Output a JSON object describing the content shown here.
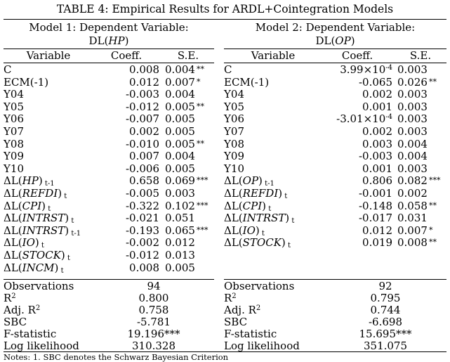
{
  "title": "TABLE 4: Empirical Results for ARDL+Cointegration Models",
  "model1": {
    "header_line1": "Model 1: Dependent Variable:",
    "header_line2_prefix": "DL(",
    "header_line2_var": "HP",
    "header_line2_suffix": ")",
    "col_variable": "Variable",
    "col_coeff": "Coeff.",
    "col_se": "S.E.",
    "rows": [
      {
        "pre": "C",
        "var": "",
        "post": "",
        "sub": "",
        "coeff": "0.008",
        "se": "0.004",
        "stars": "**"
      },
      {
        "pre": "ECM(-1)",
        "var": "",
        "post": "",
        "sub": "",
        "coeff": "0.012",
        "se": "0.007",
        "stars": "*"
      },
      {
        "pre": "Y04",
        "var": "",
        "post": "",
        "sub": "",
        "coeff": "-0.003",
        "se": "0.004",
        "stars": ""
      },
      {
        "pre": "Y05",
        "var": "",
        "post": "",
        "sub": "",
        "coeff": "-0.012",
        "se": "0.005",
        "stars": "**"
      },
      {
        "pre": "Y06",
        "var": "",
        "post": "",
        "sub": "",
        "coeff": "-0.007",
        "se": "0.005",
        "stars": ""
      },
      {
        "pre": "Y07",
        "var": "",
        "post": "",
        "sub": "",
        "coeff": "0.002",
        "se": "0.005",
        "stars": ""
      },
      {
        "pre": "Y08",
        "var": "",
        "post": "",
        "sub": "",
        "coeff": "-0.010",
        "se": "0.005",
        "stars": "**"
      },
      {
        "pre": "Y09",
        "var": "",
        "post": "",
        "sub": "",
        "coeff": "0.007",
        "se": "0.004",
        "stars": ""
      },
      {
        "pre": "Y10",
        "var": "",
        "post": "",
        "sub": "",
        "coeff": "-0.006",
        "se": "0.005",
        "stars": ""
      },
      {
        "pre": "ΔL(",
        "var": "HP",
        "post": ")",
        "sub": "t-1",
        "coeff": "0.658",
        "se": "0.069",
        "stars": "***"
      },
      {
        "pre": "ΔL(",
        "var": "REFDI",
        "post": ")",
        "sub": "t",
        "coeff": "-0.005",
        "se": "0.003",
        "stars": ""
      },
      {
        "pre": "ΔL(",
        "var": "CPI",
        "post": ")",
        "sub": "t",
        "coeff": "-0.322",
        "se": "0.102",
        "stars": "***"
      },
      {
        "pre": "ΔL(",
        "var": "INTRST",
        "post": ")",
        "sub": "t",
        "coeff": "-0.021",
        "se": "0.051",
        "stars": ""
      },
      {
        "pre": "ΔL(",
        "var": "INTRST",
        "post": ")",
        "sub": "t-1",
        "coeff": "-0.193",
        "se": "0.065",
        "stars": "***"
      },
      {
        "pre": "ΔL(",
        "var": "IO",
        "post": ")",
        "sub": "t",
        "coeff": "-0.002",
        "se": "0.012",
        "stars": ""
      },
      {
        "pre": "ΔL(",
        "var": "STOCK",
        "post": ")",
        "sub": "t",
        "coeff": "-0.012",
        "se": "0.013",
        "stars": ""
      },
      {
        "pre": "ΔL(",
        "var": "INCM",
        "post": ")",
        "sub": "t",
        "coeff": "0.008",
        "se": "0.005",
        "stars": ""
      }
    ],
    "stats": [
      {
        "label": "Observations",
        "sup": "",
        "value": "94"
      },
      {
        "label": "R",
        "sup": "2",
        "value": "0.800"
      },
      {
        "label": "Adj. R",
        "sup": "2",
        "value": "0.758"
      },
      {
        "label": "SBC",
        "sup": "",
        "value": "-5.781"
      },
      {
        "label": "F-statistic",
        "sup": "",
        "value": "19.196***"
      },
      {
        "label": "Log likelihood",
        "sup": "",
        "value": "310.328"
      }
    ]
  },
  "model2": {
    "header_line1": "Model 2: Dependent Variable:",
    "header_line2_prefix": "DL(",
    "header_line2_var": "OP",
    "header_line2_suffix": ")",
    "col_variable": "Variable",
    "col_coeff": "Coeff.",
    "col_se": "S.E.",
    "rows": [
      {
        "pre": "C",
        "var": "",
        "post": "",
        "sub": "",
        "coeff": "3.99×10",
        "coeff_sup": "-4",
        "se": "0.003",
        "stars": ""
      },
      {
        "pre": "ECM(-1)",
        "var": "",
        "post": "",
        "sub": "",
        "coeff": "-0.065",
        "coeff_sup": "",
        "se": "0.026",
        "stars": "**"
      },
      {
        "pre": "Y04",
        "var": "",
        "post": "",
        "sub": "",
        "coeff": "0.002",
        "coeff_sup": "",
        "se": "0.003",
        "stars": ""
      },
      {
        "pre": "Y05",
        "var": "",
        "post": "",
        "sub": "",
        "coeff": "0.001",
        "coeff_sup": "",
        "se": "0.003",
        "stars": ""
      },
      {
        "pre": "Y06",
        "var": "",
        "post": "",
        "sub": "",
        "coeff": "-3.01×10",
        "coeff_sup": "-4",
        "se": "0.003",
        "stars": ""
      },
      {
        "pre": "Y07",
        "var": "",
        "post": "",
        "sub": "",
        "coeff": "0.002",
        "coeff_sup": "",
        "se": "0.003",
        "stars": ""
      },
      {
        "pre": "Y08",
        "var": "",
        "post": "",
        "sub": "",
        "coeff": "0.003",
        "coeff_sup": "",
        "se": "0.004",
        "stars": ""
      },
      {
        "pre": "Y09",
        "var": "",
        "post": "",
        "sub": "",
        "coeff": "-0.003",
        "coeff_sup": "",
        "se": "0.004",
        "stars": ""
      },
      {
        "pre": "Y10",
        "var": "",
        "post": "",
        "sub": "",
        "coeff": "0.001",
        "coeff_sup": "",
        "se": "0.003",
        "stars": ""
      },
      {
        "pre": "ΔL(",
        "var": "OP",
        "post": ")",
        "sub": "t-1",
        "coeff": "0.806",
        "coeff_sup": "",
        "se": "0.082",
        "stars": "***"
      },
      {
        "pre": "ΔL(",
        "var": "REFDI",
        "post": ")",
        "sub": "t",
        "coeff": "-0.001",
        "coeff_sup": "",
        "se": "0.002",
        "stars": ""
      },
      {
        "pre": "ΔL(",
        "var": "CPI",
        "post": ")",
        "sub": "t",
        "coeff": "-0.148",
        "coeff_sup": "",
        "se": "0.058",
        "stars": "**"
      },
      {
        "pre": "ΔL(",
        "var": "INTRST",
        "post": ")",
        "sub": "t",
        "coeff": "-0.017",
        "coeff_sup": "",
        "se": "0.031",
        "stars": ""
      },
      {
        "pre": "ΔL(",
        "var": "IO",
        "post": ")",
        "sub": "t",
        "coeff": "0.012",
        "coeff_sup": "",
        "se": "0.007",
        "stars": "*"
      },
      {
        "pre": "ΔL(",
        "var": "STOCK",
        "post": ")",
        "sub": "t",
        "coeff": "0.019",
        "coeff_sup": "",
        "se": "0.008",
        "stars": "**"
      }
    ],
    "stats": [
      {
        "label": "Observations",
        "sup": "",
        "value": "92"
      },
      {
        "label": "R",
        "sup": "2",
        "value": "0.795"
      },
      {
        "label": "Adj. R",
        "sup": "2",
        "value": "0.744"
      },
      {
        "label": "SBC",
        "sup": "",
        "value": "-6.698"
      },
      {
        "label": "F-statistic",
        "sup": "",
        "value": "15.695***"
      },
      {
        "label": "Log likelihood",
        "sup": "",
        "value": "351.075"
      }
    ]
  },
  "note": "Notes: 1. SBC denotes the Schwarz Bayesian Criterion"
}
